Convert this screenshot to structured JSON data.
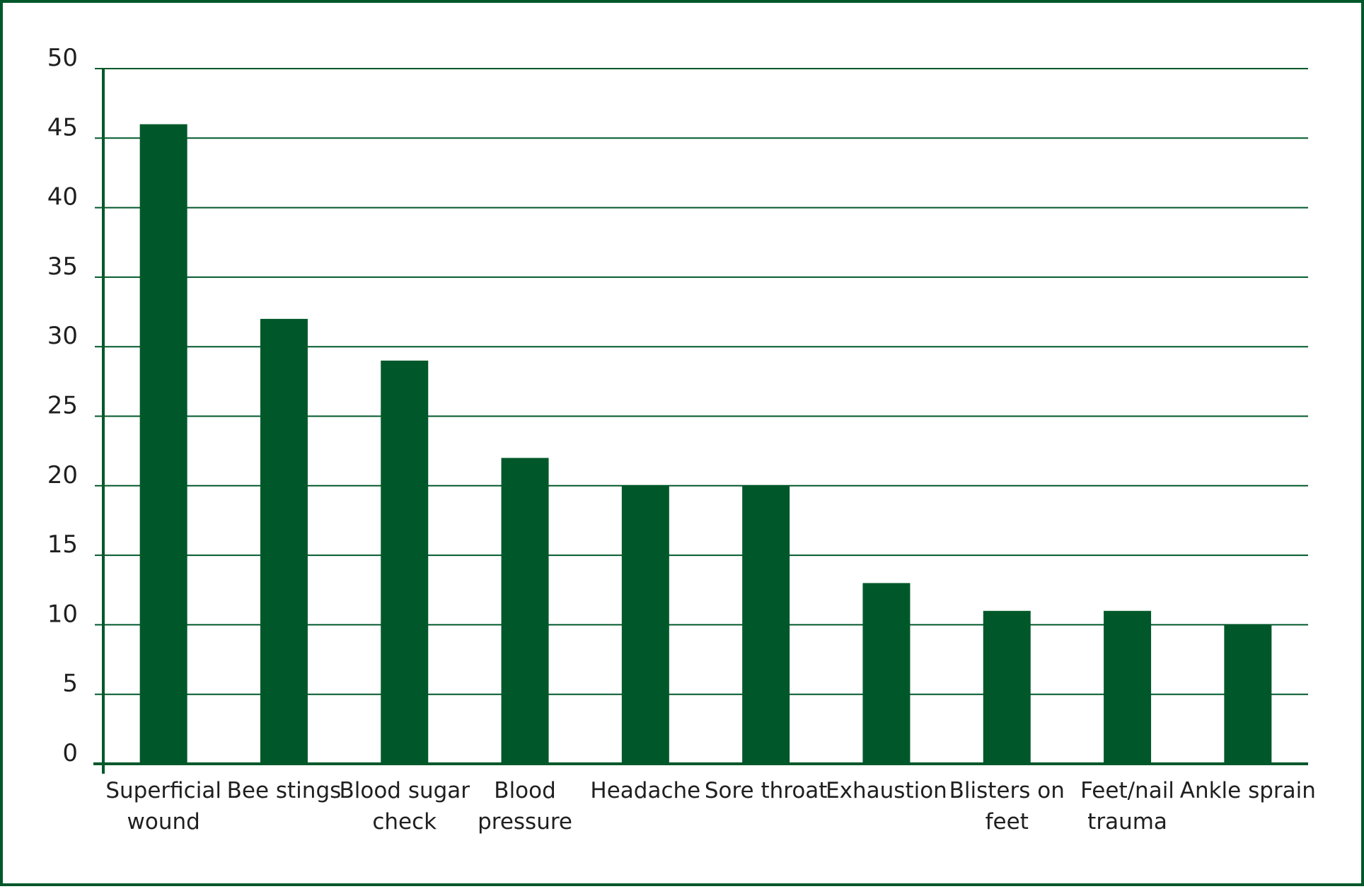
{
  "chart_data": {
    "type": "bar",
    "categories": [
      [
        "Superficial",
        "wound"
      ],
      [
        "Bee stings"
      ],
      [
        "Blood sugar",
        "check"
      ],
      [
        "Blood",
        "pressure"
      ],
      [
        "Headache"
      ],
      [
        "Sore throat"
      ],
      [
        "Exhaustion"
      ],
      [
        "Blisters on",
        "feet"
      ],
      [
        "Feet/nail",
        "trauma"
      ],
      [
        "Ankle sprain"
      ]
    ],
    "values": [
      46,
      32,
      29,
      22,
      20,
      20,
      13,
      11,
      11,
      10
    ],
    "yticks": [
      0,
      5,
      10,
      15,
      20,
      25,
      30,
      35,
      40,
      45,
      50
    ],
    "ylim": [
      0,
      50
    ],
    "grid": true,
    "legend": "none",
    "colors": {
      "bar": "#00582a",
      "grid": "#00582a",
      "axis": "#00582a",
      "border": "#00582a"
    }
  }
}
